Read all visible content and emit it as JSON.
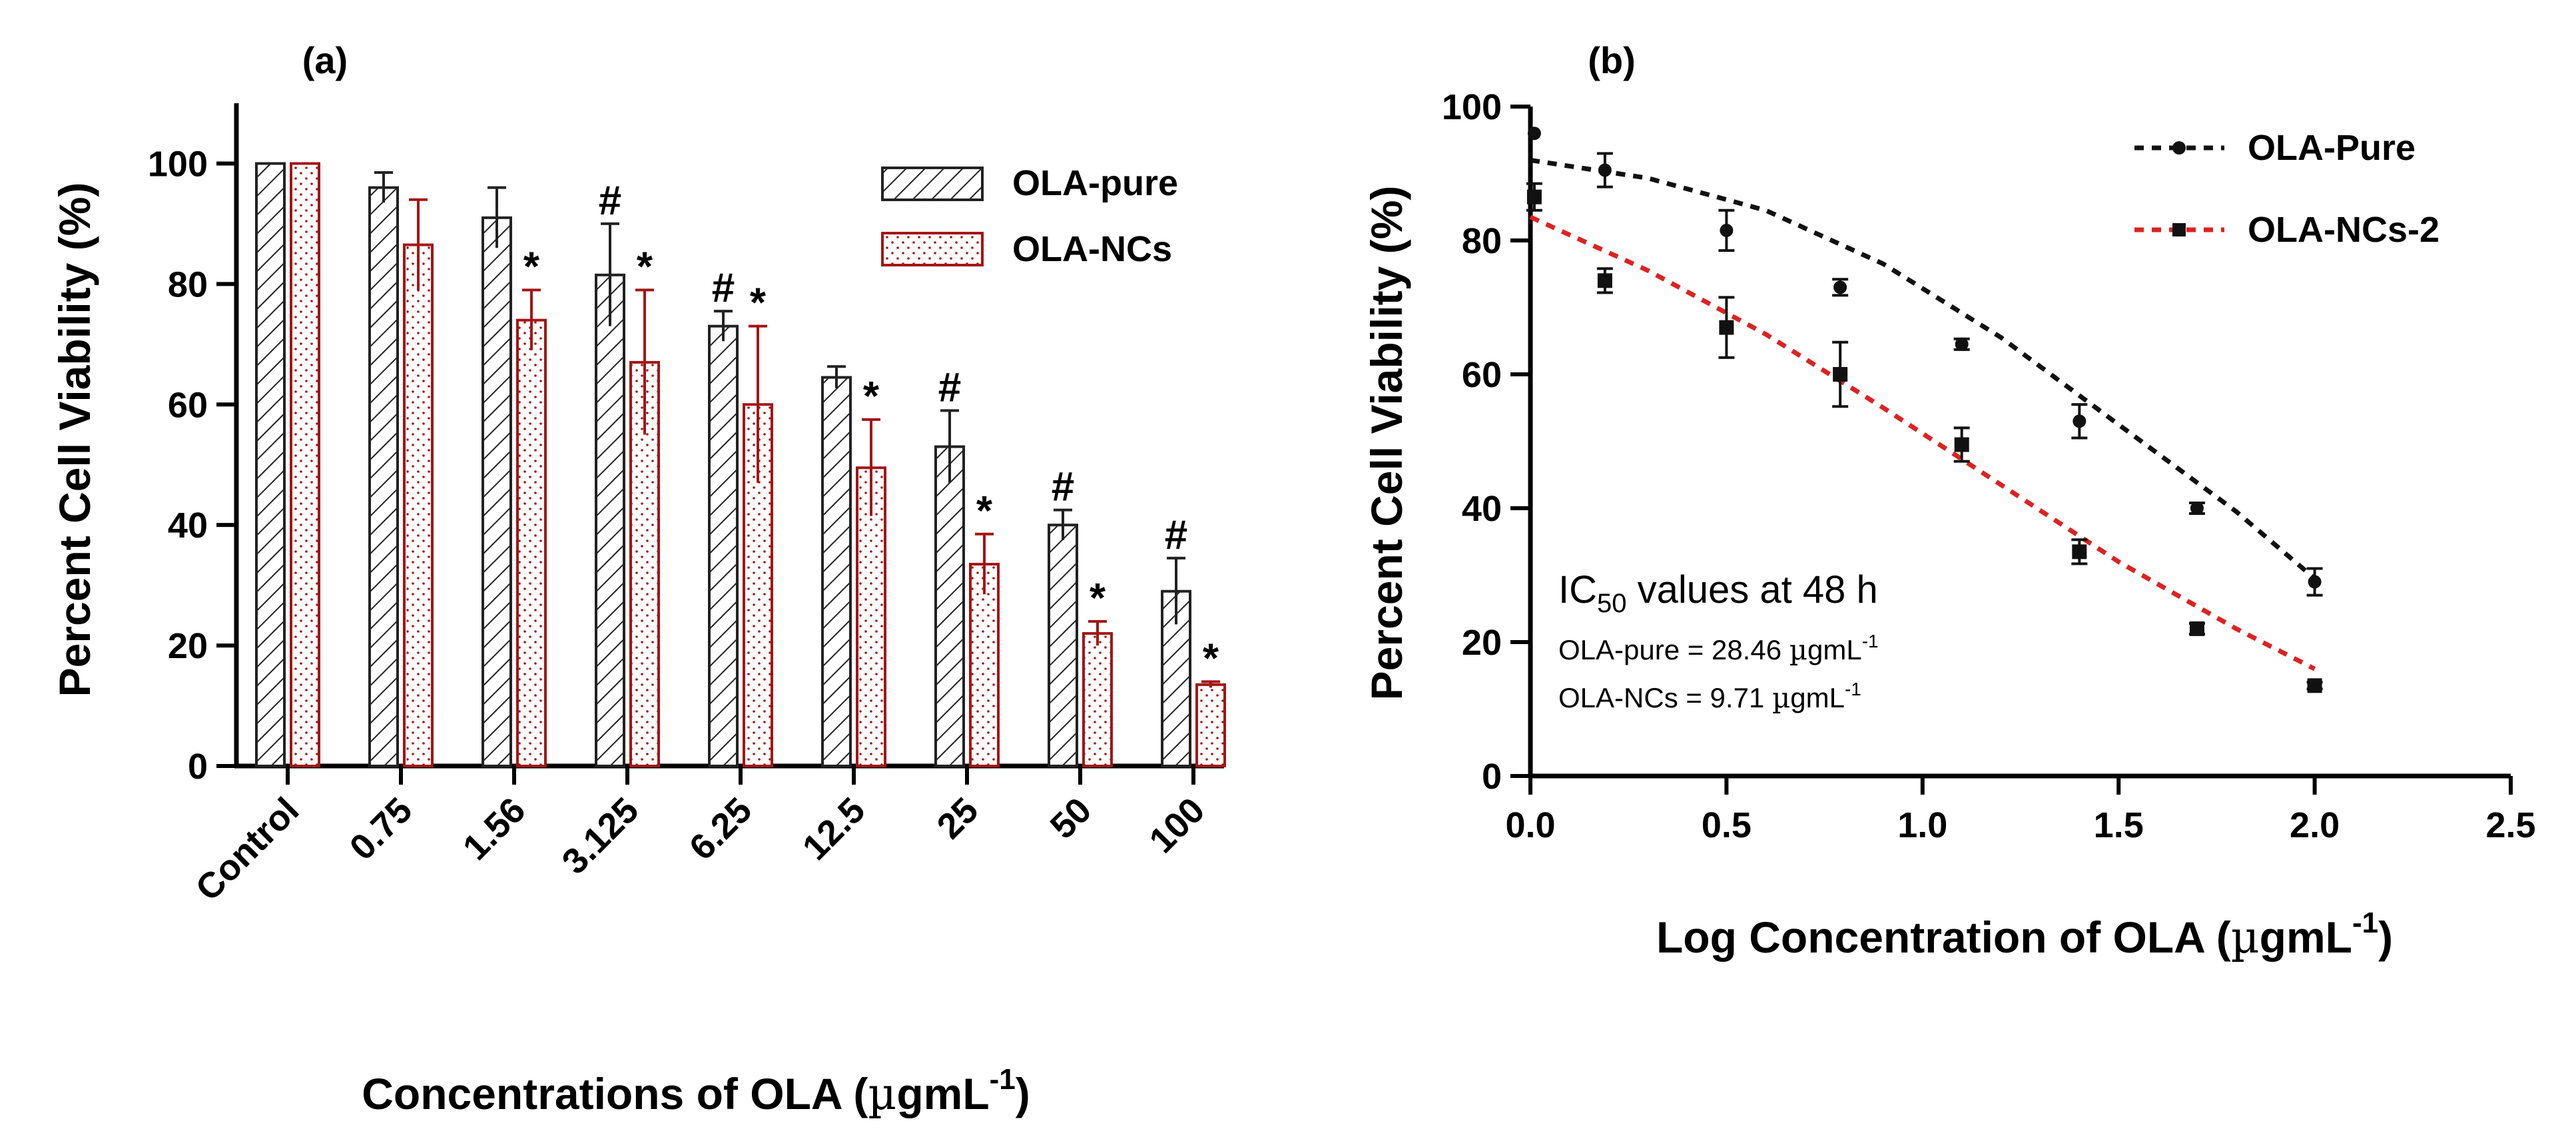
{
  "figure": {
    "panel_a_label": "(a)",
    "panel_b_label": "(b)"
  },
  "colors": {
    "pure": "#222222",
    "ncs": "#a31515",
    "line_pure": "#111111",
    "line_ncs": "#dd2222",
    "axis": "#000000"
  },
  "chart_data": [
    {
      "type": "bar",
      "panel": "(a)",
      "title": "",
      "ylabel": "Percent Cell Viability (%)",
      "xlabel_main": "Concentrations of OLA (",
      "xlabel_mu": "µ",
      "xlabel_unit": "gmL",
      "xlabel_sup": "-1",
      "xlabel_close": ")",
      "ylim": [
        0,
        110
      ],
      "yticks": [
        "0",
        "20",
        "40",
        "60",
        "80",
        "100"
      ],
      "categories": [
        "Control",
        "0.75",
        "1.56",
        "3.125",
        "6.25",
        "12.5",
        "25",
        "50",
        "100"
      ],
      "series": [
        {
          "name": "OLA-pure",
          "pattern": "hatch",
          "values": [
            100,
            96,
            91,
            81.5,
            73,
            64.5,
            53,
            40,
            29
          ],
          "errors": [
            0,
            2.5,
            5,
            8.5,
            2.5,
            1.8,
            6,
            2.5,
            5.5
          ],
          "markers": [
            "",
            "",
            "",
            "#",
            "#",
            "",
            "#",
            "#",
            "#"
          ]
        },
        {
          "name": "OLA-NCs",
          "pattern": "dots",
          "values": [
            100,
            86.5,
            74,
            67,
            60,
            49.5,
            33.5,
            22,
            13.5
          ],
          "errors": [
            0,
            7.5,
            5,
            12,
            13,
            8,
            5,
            2,
            0.5
          ],
          "markers": [
            "",
            "",
            "*",
            "*",
            "*",
            "*",
            "*",
            "*",
            "*"
          ]
        }
      ]
    },
    {
      "type": "scatter",
      "panel": "(b)",
      "title": "",
      "ylabel": "Percent Cell Viability (%)",
      "xlabel_main": "Log Concentration of OLA (",
      "xlabel_mu": "µ",
      "xlabel_unit": "gmL",
      "xlabel_sup": "-1",
      "xlabel_close": ")",
      "xlim": [
        0,
        2.5
      ],
      "ylim": [
        0,
        100
      ],
      "xticks": [
        "0.0",
        "0.5",
        "1.0",
        "1.5",
        "2.0",
        "2.5"
      ],
      "yticks": [
        "0",
        "20",
        "40",
        "60",
        "80",
        "100"
      ],
      "series": [
        {
          "name": "OLA-Pure",
          "marker": "circle",
          "x": [
            0.01,
            0.19,
            0.5,
            0.79,
            1.1,
            1.4,
            1.7,
            2.0
          ],
          "y": [
            96,
            90.5,
            81.5,
            73,
            64.5,
            53,
            40,
            29
          ],
          "err": [
            0,
            2.5,
            3,
            1.2,
            0.8,
            2.5,
            0.8,
            2
          ],
          "fit": [
            [
              0,
              92
            ],
            [
              0.3,
              89.3
            ],
            [
              0.6,
              84.5
            ],
            [
              0.9,
              76.5
            ],
            [
              1.2,
              65.5
            ],
            [
              1.5,
              52.5
            ],
            [
              1.8,
              39.5
            ],
            [
              2.0,
              29.5
            ]
          ]
        },
        {
          "name": "OLA-NCs-2",
          "marker": "square",
          "x": [
            0.01,
            0.19,
            0.5,
            0.79,
            1.1,
            1.4,
            1.7,
            2.0
          ],
          "y": [
            86.5,
            74,
            67,
            60,
            49.5,
            33.5,
            22,
            13.5
          ],
          "err": [
            2,
            1.8,
            4.5,
            4.8,
            2.5,
            1.8,
            0.8,
            0.5
          ],
          "fit": [
            [
              0,
              83.5
            ],
            [
              0.3,
              75.5
            ],
            [
              0.6,
              66
            ],
            [
              0.9,
              55
            ],
            [
              1.2,
              43.5
            ],
            [
              1.5,
              32
            ],
            [
              1.8,
              22
            ],
            [
              2.0,
              16
            ]
          ]
        }
      ],
      "annotation": {
        "ic50_prefix": "IC",
        "ic50_sub": "50",
        "ic50_suffix": " values at 48 h",
        "line1_text": "OLA-pure = 28.46 ",
        "line2_text": "OLA-NCs = 9.71 ",
        "unit_mu": "µ",
        "unit": "gmL",
        "unit_sup": "-1"
      }
    }
  ]
}
